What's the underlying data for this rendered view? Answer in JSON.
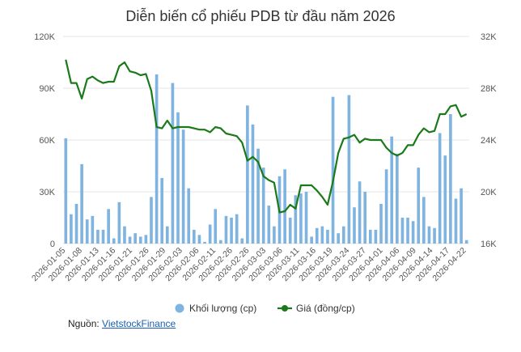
{
  "chart_data": {
    "type": "bar+line",
    "title": "Diễn biến cổ phiếu PDB từ đầu năm 2026",
    "colors": {
      "volume": "#7fb3e0",
      "price": "#1a7a1a"
    },
    "y_left": {
      "min": 0,
      "max": 120000,
      "ticks": [
        "0",
        "30K",
        "60K",
        "90K",
        "120K"
      ]
    },
    "y_right": {
      "min": 16000,
      "max": 32000,
      "ticks": [
        "16K",
        "20K",
        "24K",
        "28K",
        "32K"
      ]
    },
    "x_tick_labels": [
      "2026-01-05",
      "2026-01-08",
      "2026-01-13",
      "2026-01-16",
      "2026-01-21",
      "2026-01-26",
      "2026-01-29",
      "2026-02-03",
      "2026-02-06",
      "2026-02-11",
      "2026-02-26",
      "2026-02-26",
      "2026-03-03",
      "2026-03-06",
      "2026-03-11",
      "2026-03-16",
      "2026-03-19",
      "2026-03-24",
      "2026-03-27",
      "2026-04-01",
      "2026-04-06",
      "2026-04-09",
      "2026-04-14",
      "2026-04-17",
      "2026-04-22"
    ],
    "volume": [
      61000,
      17000,
      23000,
      46000,
      14000,
      16000,
      8000,
      8000,
      20000,
      3000,
      24000,
      10000,
      4000,
      6000,
      4000,
      5000,
      27000,
      98000,
      38000,
      10000,
      93000,
      76000,
      66000,
      32000,
      8000,
      5000,
      1000,
      11000,
      20000,
      2000,
      16000,
      15000,
      17000,
      3000,
      80000,
      69000,
      55000,
      44000,
      22000,
      10000,
      39000,
      43000,
      15000,
      28000,
      29000,
      30000,
      4000,
      9000,
      10000,
      8000,
      85000,
      6000,
      10000,
      86000,
      21000,
      36000,
      30000,
      8000,
      8000,
      23000,
      43000,
      62000,
      52000,
      15000,
      15000,
      13000,
      44000,
      27000,
      10000,
      9000,
      64000,
      51000,
      75000,
      26000,
      32000,
      2000
    ],
    "price": [
      30200,
      28400,
      28400,
      27200,
      28700,
      28900,
      28600,
      28400,
      28500,
      28500,
      29700,
      30000,
      29300,
      29200,
      29000,
      29100,
      27800,
      25000,
      24900,
      25500,
      24900,
      25000,
      25000,
      25000,
      24900,
      24800,
      24800,
      24600,
      25000,
      24900,
      24500,
      24400,
      24300,
      23800,
      22400,
      22700,
      22300,
      21200,
      20900,
      20700,
      18400,
      18500,
      19000,
      18700,
      20500,
      20500,
      20500,
      20100,
      19600,
      19000,
      20800,
      23000,
      24100,
      24200,
      24400,
      23800,
      24100,
      24000,
      24000,
      24000,
      23400,
      23000,
      22800,
      23000,
      23600,
      23600,
      24400,
      24900,
      24600,
      24700,
      26000,
      26000,
      26600,
      26700,
      25800,
      26000
    ]
  },
  "legend": {
    "volume": "Khối lượng (cp)",
    "price": "Giá (đồng/cp)"
  },
  "source": {
    "label": "Nguồn:",
    "link": "VietstockFinance"
  }
}
